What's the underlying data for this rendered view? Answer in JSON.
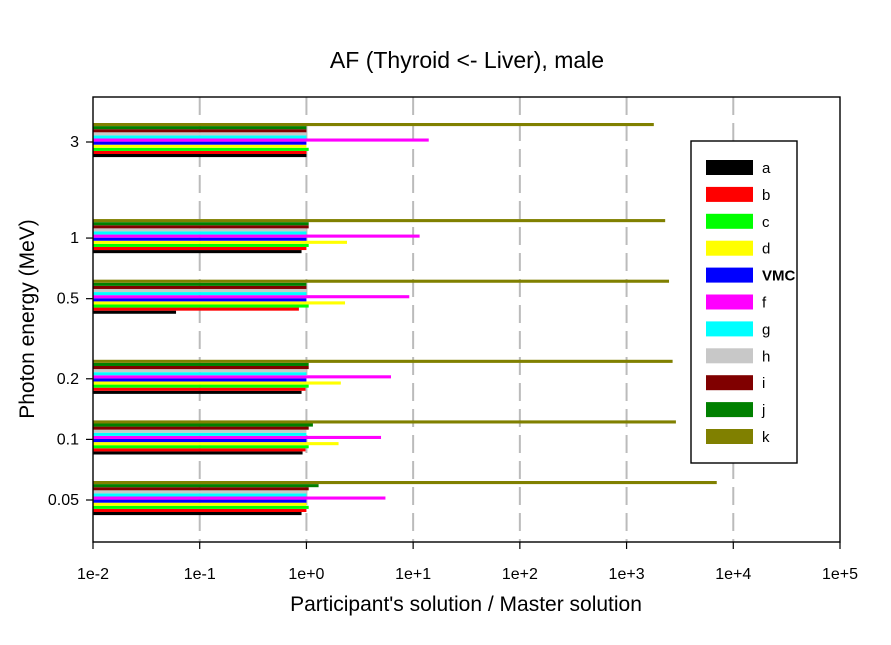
{
  "chart_data": {
    "type": "bar",
    "orientation": "horizontal",
    "title": "AF (Thyroid <- Liver), male",
    "xlabel": "Participant's solution / Master solution",
    "ylabel": "Photon energy (MeV)",
    "x_scale": "log",
    "xlim": [
      0.01,
      100000
    ],
    "x_tick_labels": [
      "1e-2",
      "1e-1",
      "1e+0",
      "1e+1",
      "1e+2",
      "1e+3",
      "1e+4",
      "1e+5"
    ],
    "categories": [
      "3",
      "1",
      "0.5",
      "0.2",
      "0.1",
      "0.05"
    ],
    "grid": "vertical dashed",
    "legend_position": "right",
    "series": [
      {
        "name": "a",
        "color": "#000000",
        "values": [
          1.0,
          0.9,
          0.06,
          0.9,
          0.92,
          0.9
        ]
      },
      {
        "name": "b",
        "color": "#ff0000",
        "values": [
          1.0,
          1.0,
          0.85,
          0.98,
          0.98,
          1.0
        ]
      },
      {
        "name": "c",
        "color": "#00ff00",
        "values": [
          1.05,
          1.05,
          1.05,
          1.05,
          1.05,
          1.05
        ]
      },
      {
        "name": "d",
        "color": "#ffff00",
        "values": [
          1.0,
          2.4,
          2.3,
          2.1,
          2.0,
          1.0
        ]
      },
      {
        "name": "VMC",
        "color": "#0000ff",
        "values": [
          1.0,
          1.0,
          1.0,
          1.0,
          1.0,
          1.0
        ]
      },
      {
        "name": "f",
        "color": "#ff00ff",
        "values": [
          14,
          11.5,
          9.2,
          6.2,
          5.0,
          5.5
        ]
      },
      {
        "name": "g",
        "color": "#00ffff",
        "values": [
          1.0,
          1.0,
          1.0,
          1.0,
          1.0,
          1.0
        ]
      },
      {
        "name": "h",
        "color": "#c8c8c8",
        "values": [
          1.0,
          1.0,
          1.0,
          1.0,
          1.0,
          1.0
        ]
      },
      {
        "name": "i",
        "color": "#800000",
        "values": [
          1.0,
          1.05,
          1.0,
          1.05,
          1.05,
          1.05
        ]
      },
      {
        "name": "j",
        "color": "#008000",
        "values": [
          1.0,
          1.05,
          1.0,
          1.05,
          1.15,
          1.3
        ]
      },
      {
        "name": "k",
        "color": "#808000",
        "values": [
          1800,
          2300,
          2500,
          2700,
          2900,
          7000
        ]
      }
    ]
  }
}
